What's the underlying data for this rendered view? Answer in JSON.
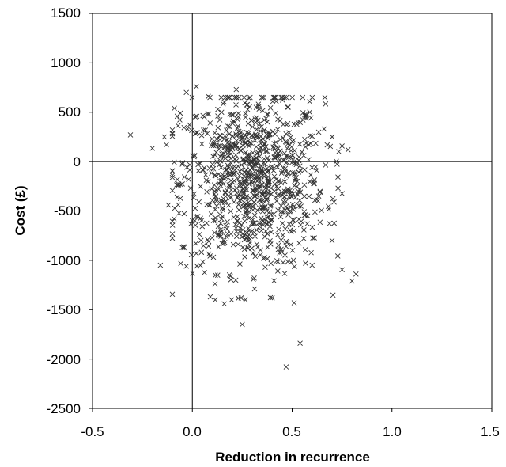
{
  "chart_data": {
    "type": "scatter",
    "xlabel": "Reduction in recurrence",
    "ylabel": "Cost (£)",
    "xlim": [
      -0.5,
      1.5
    ],
    "ylim": [
      -2500,
      1500
    ],
    "x_ticks": [
      "-0.5",
      "0.0",
      "0.5",
      "1.0",
      "1.5"
    ],
    "y_ticks": [
      "1500",
      "1000",
      "500",
      "0",
      "-500",
      "-1000",
      "-1500",
      "-2000",
      "-2500"
    ],
    "x_tick_values": [
      -0.5,
      0.0,
      0.5,
      1.0,
      1.5
    ],
    "y_tick_values": [
      1500,
      1000,
      500,
      0,
      -500,
      -1000,
      -1500,
      -2000,
      -2500
    ],
    "grid": false,
    "reference_lines": {
      "x": 0,
      "y": 0
    },
    "marker": "x",
    "color": "#333333",
    "cluster_center": [
      0.3,
      -200
    ],
    "cluster_spread": [
      0.18,
      450
    ],
    "point_count": 1000,
    "outliers": [
      {
        "x": -0.31,
        "y": 270
      },
      {
        "x": -0.2,
        "y": 135
      },
      {
        "x": -0.16,
        "y": -1050
      },
      {
        "x": -0.12,
        "y": -440
      },
      {
        "x": -0.07,
        "y": -240
      },
      {
        "x": -0.03,
        "y": 700
      },
      {
        "x": 0.02,
        "y": 760
      },
      {
        "x": -0.05,
        "y": -870
      },
      {
        "x": -0.03,
        "y": -1060
      },
      {
        "x": 0.25,
        "y": -1650
      },
      {
        "x": 0.47,
        "y": -2080
      },
      {
        "x": 0.54,
        "y": -1840
      },
      {
        "x": 0.51,
        "y": -1430
      },
      {
        "x": 0.8,
        "y": -1210
      },
      {
        "x": 0.82,
        "y": -1140
      },
      {
        "x": 0.78,
        "y": 120
      },
      {
        "x": 0.73,
        "y": -270
      },
      {
        "x": 0.71,
        "y": -410
      },
      {
        "x": 0.7,
        "y": -800
      },
      {
        "x": 0.16,
        "y": -1440
      },
      {
        "x": 0.09,
        "y": -1370
      },
      {
        "x": 0.22,
        "y": 730
      },
      {
        "x": 0.08,
        "y": 660
      },
      {
        "x": 0.42,
        "y": 610
      },
      {
        "x": 0.66,
        "y": 330
      },
      {
        "x": -0.13,
        "y": 170
      },
      {
        "x": -0.14,
        "y": 250
      },
      {
        "x": -0.09,
        "y": 540
      },
      {
        "x": -0.06,
        "y": 490
      },
      {
        "x": 0.0,
        "y": -600
      },
      {
        "x": 0.02,
        "y": -930
      },
      {
        "x": 0.31,
        "y": -1180
      },
      {
        "x": 0.4,
        "y": -1380
      },
      {
        "x": 0.6,
        "y": -1050
      },
      {
        "x": 0.64,
        "y": -310
      }
    ]
  }
}
